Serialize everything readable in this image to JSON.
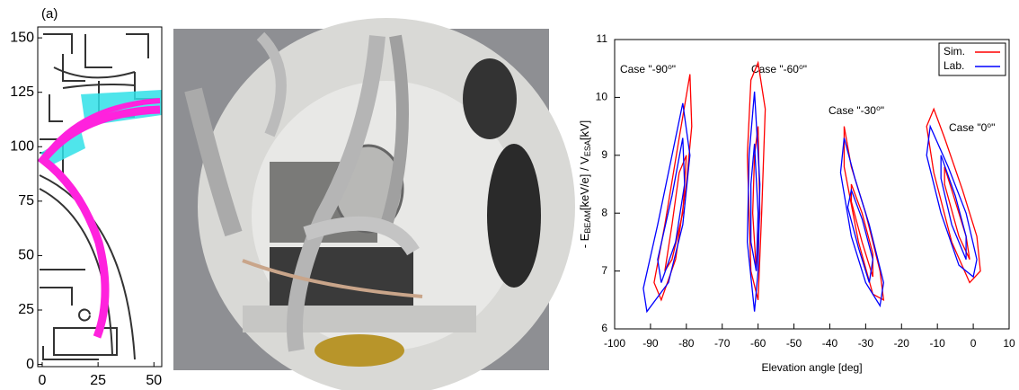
{
  "chart_data": [
    {
      "type": "diagram",
      "title": "(a)",
      "xlim": [
        -2,
        53.5
      ],
      "ylim": [
        -1,
        155
      ],
      "xticks": [
        0,
        25,
        50
      ],
      "yticks": [
        0,
        25,
        50,
        75,
        100,
        125,
        150
      ]
    },
    {
      "type": "contour",
      "xlabel": "Elevation angle [deg]",
      "ylabel_parts": [
        "- E",
        "BEAM",
        "[keV/e] / V",
        "ESA",
        "[kV]"
      ],
      "xlim": [
        -100,
        10
      ],
      "ylim": [
        6,
        11
      ],
      "xticks": [
        -100,
        -90,
        -80,
        -70,
        -60,
        -50,
        -40,
        -30,
        -20,
        -10,
        0,
        10
      ],
      "yticks": [
        6,
        7,
        8,
        9,
        10,
        11
      ],
      "legend": "upper right",
      "annotations": [
        "Case \"-90⁰\"",
        "Case \"-60⁰\"",
        "Case \"-30⁰\"",
        "Case \"0⁰\""
      ],
      "series": [
        {
          "name": "Sim.",
          "color": "#ff0000",
          "contours": [
            {
              "x": [
                -79,
                -78.5,
                -80,
                -83,
                -87,
                -89,
                -86,
                -82
              ],
              "y": [
                10.4,
                9.5,
                8.5,
                7.2,
                6.5,
                6.8,
                7.8,
                9.3
              ]
            },
            {
              "x": [
                -80,
                -81,
                -84,
                -86,
                -84,
                -82
              ],
              "y": [
                9.0,
                8.0,
                7.2,
                7.0,
                7.8,
                8.7
              ]
            },
            {
              "x": [
                -60,
                -58,
                -59,
                -60,
                -62,
                -63,
                -62
              ],
              "y": [
                10.6,
                9.8,
                8.0,
                6.5,
                7.0,
                9.0,
                10.3
              ]
            },
            {
              "x": [
                -60,
                -59.5,
                -60.5,
                -61.5,
                -61
              ],
              "y": [
                9.5,
                8.0,
                7.0,
                8.0,
                9.0
              ]
            },
            {
              "x": [
                -36,
                -34,
                -30,
                -26,
                -25,
                -28,
                -32,
                -36
              ],
              "y": [
                9.5,
                8.8,
                8.0,
                7.0,
                6.5,
                6.6,
                7.5,
                8.8
              ]
            },
            {
              "x": [
                -34,
                -31,
                -28,
                -28,
                -31,
                -34
              ],
              "y": [
                8.5,
                8.0,
                7.3,
                6.9,
                7.5,
                8.2
              ]
            },
            {
              "x": [
                -11,
                -8,
                -3,
                1,
                2,
                -1,
                -6,
                -11,
                -13
              ],
              "y": [
                9.8,
                9.3,
                8.4,
                7.6,
                7.0,
                6.8,
                7.5,
                8.7,
                9.5
              ]
            },
            {
              "x": [
                -8,
                -5,
                -2,
                -1,
                -4,
                -8
              ],
              "y": [
                8.8,
                8.2,
                7.6,
                7.2,
                7.6,
                8.5
              ]
            }
          ]
        },
        {
          "name": "Lab.",
          "color": "#0000ff",
          "contours": [
            {
              "x": [
                -81,
                -79,
                -81,
                -85,
                -91,
                -92,
                -88,
                -84
              ],
              "y": [
                9.9,
                9.0,
                7.8,
                6.8,
                6.3,
                6.7,
                7.8,
                9.0
              ]
            },
            {
              "x": [
                -81,
                -80.5,
                -83,
                -87,
                -88,
                -84
              ],
              "y": [
                9.3,
                8.5,
                7.5,
                6.8,
                7.2,
                8.3
              ]
            },
            {
              "x": [
                -61,
                -59.5,
                -60,
                -61,
                -63,
                -62.5
              ],
              "y": [
                10.1,
                8.5,
                7.0,
                6.3,
                7.5,
                9.0
              ]
            },
            {
              "x": [
                -61,
                -60,
                -60.5,
                -62,
                -62
              ],
              "y": [
                9.2,
                8.0,
                7.0,
                7.5,
                8.5
              ]
            },
            {
              "x": [
                -36,
                -33,
                -29,
                -25,
                -26,
                -30,
                -34,
                -37
              ],
              "y": [
                9.3,
                8.6,
                7.8,
                6.8,
                6.4,
                6.8,
                7.6,
                8.7
              ]
            },
            {
              "x": [
                -34,
                -31,
                -28,
                -29,
                -32,
                -35
              ],
              "y": [
                8.4,
                7.9,
                7.2,
                6.8,
                7.4,
                8.1
              ]
            },
            {
              "x": [
                -12,
                -7,
                -2,
                1,
                0,
                -4,
                -9,
                -13
              ],
              "y": [
                9.5,
                8.8,
                8.0,
                7.2,
                6.9,
                7.1,
                8.0,
                9.0
              ]
            },
            {
              "x": [
                -9,
                -5,
                -2,
                -2,
                -6,
                -9
              ],
              "y": [
                9.0,
                8.3,
                7.6,
                7.2,
                7.8,
                8.6
              ]
            }
          ]
        }
      ]
    }
  ]
}
